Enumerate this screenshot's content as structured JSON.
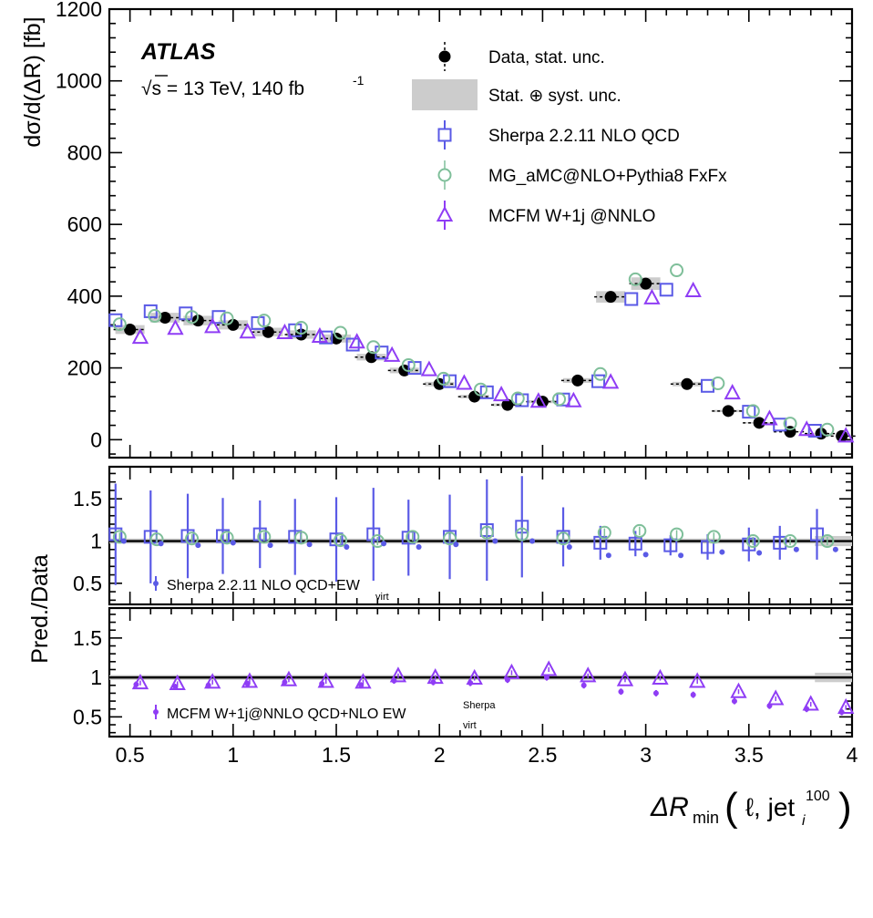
{
  "chart_data": [
    {
      "type": "scatter",
      "panel": "main",
      "experiment": "ATLAS",
      "energy_text": "√s = 13 TeV, 140 fb",
      "energy_sup": "-1",
      "ylabel": "dσ/d(ΔR) [fb]",
      "xlim": [
        0.4,
        4.0
      ],
      "ylim": [
        -50,
        1200
      ],
      "yticks": [
        0,
        200,
        400,
        600,
        800,
        1000,
        1200
      ],
      "legend": [
        {
          "key": "data",
          "label": "Data, stat. unc."
        },
        {
          "key": "band",
          "label": "Stat. ⊕ syst. unc."
        },
        {
          "key": "sherpa",
          "label": "Sherpa 2.2.11 NLO QCD"
        },
        {
          "key": "mg",
          "label": "MG_aMC@NLO+Pythia8 FxFx"
        },
        {
          "key": "mcfm",
          "label": "MCFM W+1j @NNLO"
        }
      ],
      "legend_position": "top-right",
      "colors": {
        "data": "#000000",
        "band": "#cccccc",
        "sherpa": "#5a5ae6",
        "mg": "#7fbf9a",
        "mcfm": "#8f3df5"
      },
      "series": [
        {
          "key": "data",
          "name": "Data, stat. unc.",
          "marker": "circle",
          "x": [
            0.5,
            0.67,
            0.83,
            1.0,
            1.17,
            1.33,
            1.5,
            1.67,
            1.83,
            2.0,
            2.17,
            2.33,
            2.5,
            2.67,
            2.83,
            3.0,
            3.2,
            3.4,
            3.55,
            3.7,
            3.85,
            3.95
          ],
          "y": [
            307,
            340,
            332,
            320,
            300,
            293,
            282,
            230,
            193,
            155,
            120,
            97,
            106,
            165,
            398,
            435,
            155,
            80,
            47,
            22,
            17,
            10
          ]
        },
        {
          "key": "sherpa",
          "name": "Sherpa 2.2.11 NLO QCD",
          "marker": "square",
          "x": [
            0.43,
            0.6,
            0.77,
            0.93,
            1.12,
            1.3,
            1.45,
            1.58,
            1.72,
            1.88,
            2.05,
            2.23,
            2.4,
            2.6,
            2.77,
            2.93,
            3.1,
            3.3,
            3.5,
            3.65,
            3.82
          ],
          "y": [
            333,
            358,
            352,
            342,
            325,
            305,
            285,
            265,
            243,
            200,
            163,
            132,
            110,
            112,
            163,
            392,
            418,
            150,
            78,
            42,
            25
          ]
        },
        {
          "key": "mg",
          "name": "MG_aMC@NLO+Pythia8 FxFx",
          "marker": "circle-open",
          "x": [
            0.45,
            0.62,
            0.8,
            0.97,
            1.15,
            1.33,
            1.52,
            1.68,
            1.85,
            2.02,
            2.2,
            2.38,
            2.58,
            2.78,
            2.95,
            3.15,
            3.35,
            3.52,
            3.7,
            3.88
          ],
          "y": [
            322,
            345,
            342,
            338,
            332,
            312,
            298,
            258,
            208,
            170,
            140,
            115,
            113,
            183,
            447,
            472,
            157,
            80,
            45,
            28
          ]
        },
        {
          "key": "mcfm",
          "name": "MCFM W+1j @NNLO",
          "marker": "triangle-open",
          "x": [
            0.55,
            0.72,
            0.9,
            1.07,
            1.25,
            1.42,
            1.6,
            1.77,
            1.95,
            2.12,
            2.3,
            2.48,
            2.65,
            2.83,
            3.03,
            3.23,
            3.42,
            3.6,
            3.78,
            3.97
          ],
          "y": [
            285,
            310,
            315,
            300,
            298,
            288,
            272,
            235,
            195,
            157,
            125,
            107,
            108,
            160,
            395,
            415,
            130,
            58,
            28,
            10
          ]
        }
      ]
    },
    {
      "type": "scatter",
      "panel": "ratio-sherpa",
      "ylabel": "Pred./Data",
      "ylim": [
        0.25,
        1.88
      ],
      "yticks": [
        0.5,
        1,
        1.5
      ],
      "legend_label": "Sherpa 2.2.11 NLO QCD+EW",
      "legend_sub": "virt",
      "series": [
        {
          "key": "sherpa",
          "name": "Sherpa 2.2.11 NLO QCD",
          "marker": "square",
          "x": [
            0.43,
            0.6,
            0.78,
            0.95,
            1.13,
            1.3,
            1.5,
            1.68,
            1.85,
            2.05,
            2.23,
            2.4,
            2.6,
            2.78,
            2.95,
            3.12,
            3.3,
            3.5,
            3.65,
            3.83
          ],
          "y": [
            1.08,
            1.05,
            1.06,
            1.06,
            1.08,
            1.05,
            1.02,
            1.08,
            1.04,
            1.05,
            1.13,
            1.17,
            1.05,
            0.98,
            0.97,
            0.95,
            0.93,
            0.96,
            0.98,
            1.08
          ]
        },
        {
          "key": "mg",
          "name": "MG_aMC@NLO+Pythia8 FxFx",
          "marker": "circle-open",
          "x": [
            0.45,
            0.63,
            0.8,
            0.97,
            1.15,
            1.33,
            1.52,
            1.7,
            1.87,
            2.05,
            2.23,
            2.4,
            2.6,
            2.8,
            2.97,
            3.15,
            3.33,
            3.52,
            3.7,
            3.88
          ],
          "y": [
            1.05,
            1.02,
            1.03,
            1.04,
            1.05,
            1.04,
            1.01,
            1.0,
            1.05,
            1.03,
            1.1,
            1.08,
            1.03,
            1.1,
            1.12,
            1.08,
            1.05,
            1.0,
            1.0,
            1.0
          ]
        },
        {
          "key": "sherpa_ew",
          "name": "Sherpa 2.2.11 NLO QCD+EW",
          "marker": "dot",
          "x": [
            0.47,
            0.65,
            0.83,
            1.0,
            1.18,
            1.37,
            1.55,
            1.73,
            1.9,
            2.08,
            2.27,
            2.45,
            2.63,
            2.82,
            3.0,
            3.17,
            3.37,
            3.55,
            3.73,
            3.92
          ],
          "y": [
            1.0,
            0.97,
            0.95,
            0.98,
            0.95,
            0.96,
            0.93,
            0.97,
            0.93,
            0.96,
            1.0,
            1.0,
            0.93,
            0.83,
            0.84,
            0.83,
            0.87,
            0.86,
            0.9,
            0.9
          ]
        }
      ]
    },
    {
      "type": "scatter",
      "panel": "ratio-mcfm",
      "xlabel": "ΔR",
      "xlabel_sub": "min",
      "xlabel_args": "ℓ, jet",
      "xlabel_args_sub": "i",
      "xlabel_args_sup": "100",
      "ylim": [
        0.25,
        1.88
      ],
      "yticks": [
        0.5,
        1,
        1.5
      ],
      "xticks": [
        0.5,
        1,
        1.5,
        2,
        2.5,
        3,
        3.5,
        4
      ],
      "xlim": [
        0.4,
        4.0
      ],
      "legend_label": "MCFM W+1j@NNLO QCD+NLO EW",
      "legend_sub": "virt",
      "legend_sup": "Sherpa",
      "series": [
        {
          "key": "mcfm",
          "name": "MCFM W+1j @NNLO",
          "marker": "triangle-open",
          "x": [
            0.55,
            0.73,
            0.9,
            1.08,
            1.27,
            1.45,
            1.63,
            1.8,
            1.98,
            2.17,
            2.35,
            2.53,
            2.72,
            2.9,
            3.07,
            3.25,
            3.45,
            3.63,
            3.8,
            3.97
          ],
          "y": [
            0.93,
            0.92,
            0.94,
            0.95,
            0.97,
            0.95,
            0.94,
            1.02,
            1.0,
            0.99,
            1.06,
            1.1,
            1.02,
            0.97,
            0.99,
            0.95,
            0.82,
            0.73,
            0.66,
            0.62
          ]
        },
        {
          "key": "mcfm_ew",
          "name": "MCFM W+1j@NNLO QCD+NLO EW",
          "marker": "dot",
          "x": [
            0.53,
            0.72,
            0.88,
            1.07,
            1.25,
            1.43,
            1.62,
            1.78,
            1.97,
            2.15,
            2.33,
            2.52,
            2.7,
            2.88,
            3.05,
            3.23,
            3.43,
            3.6,
            3.78,
            3.95
          ],
          "y": [
            0.91,
            0.88,
            0.9,
            0.92,
            0.94,
            0.92,
            0.9,
            0.96,
            0.94,
            0.93,
            0.97,
            1.0,
            0.9,
            0.82,
            0.8,
            0.78,
            0.7,
            0.64,
            0.6,
            0.56
          ]
        }
      ]
    }
  ]
}
